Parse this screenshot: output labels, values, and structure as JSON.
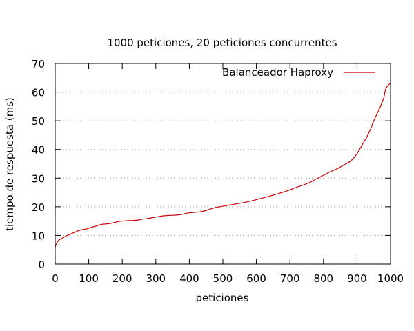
{
  "chart_data": {
    "type": "line",
    "title": "1000 peticiones, 20 peticiones concurrentes",
    "xlabel": "peticiones",
    "ylabel": "tiempo de respuesta (ms)",
    "xlim": [
      0,
      1000
    ],
    "ylim": [
      0,
      70
    ],
    "xticks": [
      0,
      100,
      200,
      300,
      400,
      500,
      600,
      700,
      800,
      900,
      1000
    ],
    "yticks": [
      0,
      10,
      20,
      30,
      40,
      50,
      60,
      70
    ],
    "grid": "horizontal dotted",
    "legend_position": "top-right",
    "series": [
      {
        "name": "Balanceador Haproxy",
        "color": "#cc0000",
        "x": [
          0,
          5,
          10,
          20,
          30,
          40,
          50,
          60,
          70,
          80,
          90,
          100,
          110,
          120,
          130,
          140,
          150,
          160,
          170,
          180,
          190,
          200,
          210,
          220,
          230,
          240,
          250,
          260,
          270,
          280,
          290,
          300,
          310,
          320,
          330,
          340,
          350,
          360,
          370,
          380,
          390,
          400,
          410,
          420,
          430,
          440,
          450,
          460,
          470,
          480,
          490,
          500,
          520,
          540,
          560,
          580,
          600,
          620,
          640,
          660,
          680,
          700,
          720,
          740,
          760,
          780,
          800,
          820,
          840,
          860,
          880,
          890,
          900,
          910,
          920,
          930,
          940,
          950,
          960,
          970,
          980,
          985,
          990,
          995,
          1000
        ],
        "y": [
          6,
          7.5,
          8.3,
          9,
          9.6,
          10.2,
          10.7,
          11.2,
          11.7,
          12,
          12.2,
          12.5,
          12.9,
          13.2,
          13.6,
          13.9,
          14,
          14.1,
          14.3,
          14.6,
          14.9,
          15,
          15.1,
          15.2,
          15.2,
          15.3,
          15.4,
          15.7,
          15.8,
          16,
          16.2,
          16.4,
          16.6,
          16.8,
          16.9,
          17,
          17,
          17.1,
          17.2,
          17.4,
          17.7,
          17.9,
          18,
          18.1,
          18.2,
          18.4,
          18.7,
          19.1,
          19.5,
          19.8,
          20,
          20.2,
          20.6,
          21,
          21.4,
          21.9,
          22.5,
          23.1,
          23.7,
          24.4,
          25.1,
          25.9,
          26.8,
          27.6,
          28.5,
          29.8,
          31,
          32.2,
          33.2,
          34.5,
          35.8,
          37,
          38.5,
          40.5,
          42.5,
          44.5,
          47,
          50,
          52.5,
          55,
          58,
          61,
          62,
          62.7,
          63
        ]
      }
    ]
  }
}
